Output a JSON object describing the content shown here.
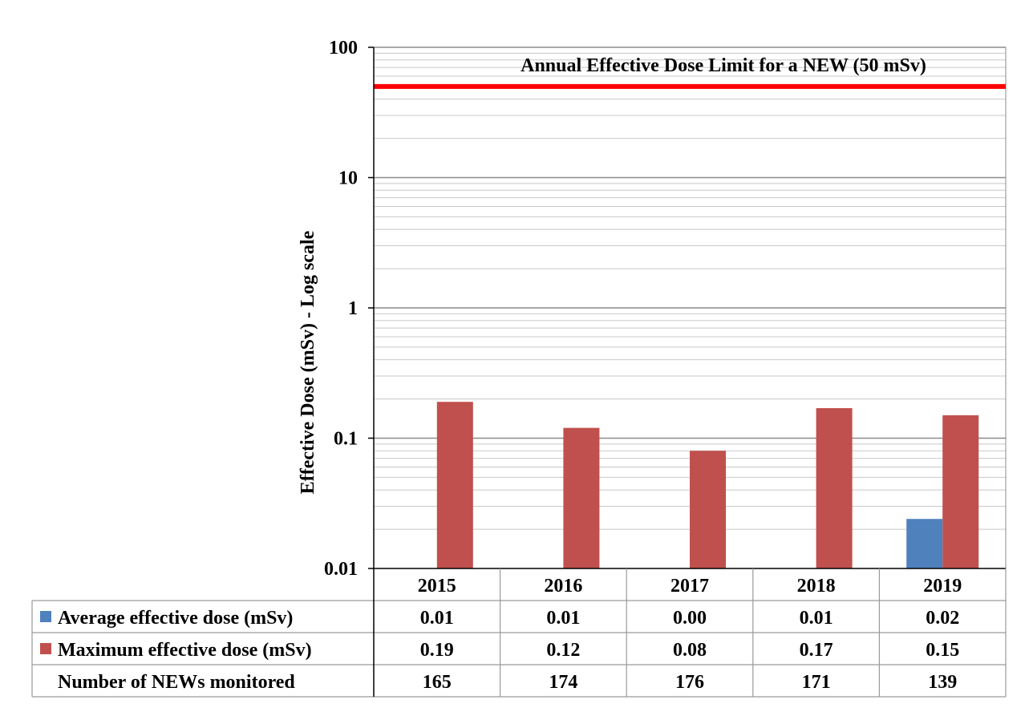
{
  "chart_data": {
    "type": "bar",
    "title": "",
    "xlabel": "",
    "ylabel": "Effective Dose (mSv) - Log scale",
    "y_scale": "log",
    "ylim": [
      0.01,
      100
    ],
    "y_ticks": [
      "0.01",
      "0.1",
      "1",
      "10",
      "100"
    ],
    "grid": true,
    "categories": [
      "2015",
      "2016",
      "2017",
      "2018",
      "2019"
    ],
    "series": [
      {
        "name": "Average effective dose (mSv)",
        "color": "#4f81bd",
        "values": [
          0.01,
          0.01,
          0.0,
          0.01,
          0.024
        ]
      },
      {
        "name": "Maximum effective dose (mSv)",
        "color": "#c0504d",
        "values": [
          0.19,
          0.12,
          0.08,
          0.17,
          0.15
        ]
      }
    ],
    "reference_line": {
      "value": 50,
      "color": "#ff0000",
      "label": "Annual Effective Dose Limit  for a NEW (50 mSv)"
    },
    "data_table": {
      "rows": [
        {
          "label": "Average effective dose (mSv)",
          "color": "#4f81bd",
          "values": [
            "0.01",
            "0.01",
            "0.00",
            "0.01",
            "0.02"
          ]
        },
        {
          "label": "Maximum effective dose (mSv)",
          "color": "#c0504d",
          "values": [
            "0.19",
            "0.12",
            "0.08",
            "0.17",
            "0.15"
          ]
        },
        {
          "label": "Number of NEWs monitored",
          "color": "",
          "values": [
            "165",
            "174",
            "176",
            "171",
            "139"
          ]
        }
      ]
    }
  }
}
